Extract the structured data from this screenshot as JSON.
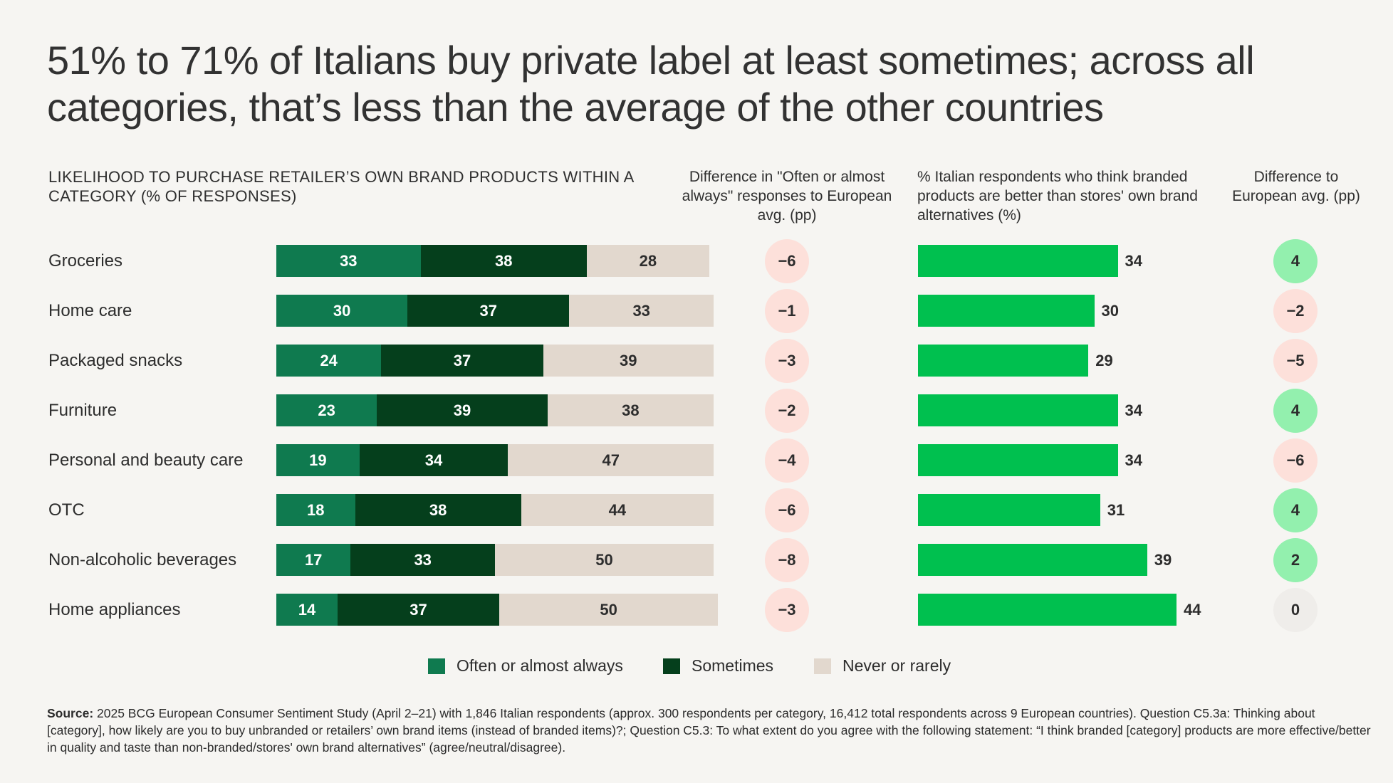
{
  "title": "51% to 71% of Italians buy private label at least sometimes; across all categories, that’s less than the average of the other countries",
  "headers": {
    "likelihood": "LIKELIHOOD TO PURCHASE RETAILER’S OWN BRAND PRODUCTS WITHIN A CATEGORY (% OF RESPONSES)",
    "diff_often": "Difference in \"Often or almost always\" responses to European avg. (pp)",
    "branded": "% Italian respondents who think branded products are better than stores' own brand alternatives (%)",
    "diff_branded": "Difference to European avg. (pp)"
  },
  "legend": {
    "often": "Often or almost always",
    "sometimes": "Sometimes",
    "never": "Never or rarely"
  },
  "colors": {
    "often": "#0f7a4f",
    "sometimes": "#053f1c",
    "never": "#e2d8ce",
    "branded_bar": "#00c04f",
    "negative_circle": "#fde0da",
    "positive_circle": "#93f0ae",
    "zero_circle": "#efedea"
  },
  "chart_data": [
    {
      "type": "bar",
      "stacked": true,
      "orientation": "horizontal",
      "categories": [
        "Groceries",
        "Home care",
        "Packaged snacks",
        "Furniture",
        "Personal and beauty care",
        "OTC",
        "Non-alcoholic beverages",
        "Home appliances"
      ],
      "series": [
        {
          "name": "Often or almost always",
          "values": [
            33,
            30,
            24,
            23,
            19,
            18,
            17,
            14
          ]
        },
        {
          "name": "Sometimes",
          "values": [
            38,
            37,
            37,
            39,
            34,
            38,
            33,
            37
          ]
        },
        {
          "name": "Never or rarely",
          "values": [
            28,
            33,
            39,
            38,
            47,
            44,
            50,
            50
          ]
        }
      ]
    },
    {
      "type": "table",
      "categories": [
        "Groceries",
        "Home care",
        "Packaged snacks",
        "Furniture",
        "Personal and beauty care",
        "OTC",
        "Non-alcoholic beverages",
        "Home appliances"
      ],
      "values": [
        "−6",
        "−1",
        "−3",
        "−2",
        "−4",
        "−6",
        "−8",
        "−3"
      ]
    },
    {
      "type": "bar",
      "orientation": "horizontal",
      "categories": [
        "Groceries",
        "Home care",
        "Packaged snacks",
        "Furniture",
        "Personal and beauty care",
        "OTC",
        "Non-alcoholic beverages",
        "Home appliances"
      ],
      "values": [
        34,
        30,
        29,
        34,
        34,
        31,
        39,
        44
      ]
    },
    {
      "type": "table",
      "categories": [
        "Groceries",
        "Home care",
        "Packaged snacks",
        "Furniture",
        "Personal and beauty care",
        "OTC",
        "Non-alcoholic beverages",
        "Home appliances"
      ],
      "values": [
        "4",
        "−2",
        "−5",
        "4",
        "−6",
        "4",
        "2",
        "0"
      ]
    }
  ],
  "source": {
    "label": "Source:",
    "text": " 2025 BCG European Consumer Sentiment Study (April 2–21) with 1,846 Italian respondents (approx. 300 respondents per category, 16,412 total respondents across 9 European countries). Question C5.3a: Thinking about [category], how likely are you to buy unbranded or retailers’ own brand items (instead of branded items)?; Question C5.3: To what extent do you agree with the following statement: “I think branded [category] products are more effective/better in quality and taste than non-branded/stores' own brand alternatives” (agree/neutral/disagree)."
  }
}
